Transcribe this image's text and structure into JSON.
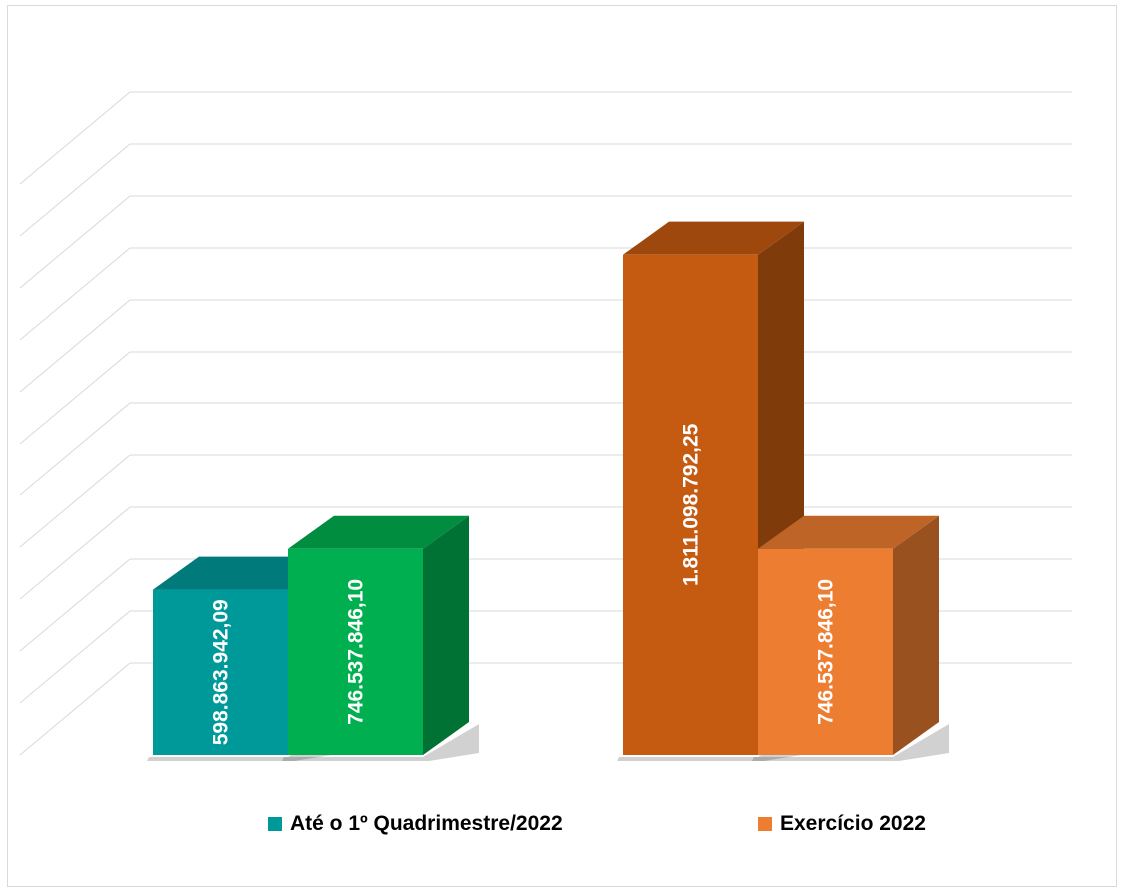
{
  "chart_data": {
    "type": "bar",
    "categories": [
      "Até o 1º Quadrimestre/2022",
      "Exercício 2022"
    ],
    "groups": [
      {
        "category": "Até o 1º Quadrimestre/2022",
        "bars": [
          {
            "value": 598863942.09,
            "label": "598.863.942,09",
            "color": "#00999a"
          },
          {
            "value": 746537846.1,
            "label": "746.537.846,10",
            "color": "#00b050"
          }
        ]
      },
      {
        "category": "Exercício 2022",
        "bars": [
          {
            "value": 1811098792.25,
            "label": "1.811.098.792,25",
            "color": "#c55a11"
          },
          {
            "value": 746537846.1,
            "label": "746.537.846,10",
            "color": "#ed7d31"
          }
        ]
      }
    ],
    "ylim": [
      0,
      2400000000
    ],
    "grid": true,
    "style": "3d-column",
    "legend_position": "bottom"
  },
  "legend": [
    {
      "label": "Até o 1º Quadrimestre/2022",
      "color": "#00999a"
    },
    {
      "label": "Exercício 2022",
      "color": "#ed7d31"
    }
  ]
}
